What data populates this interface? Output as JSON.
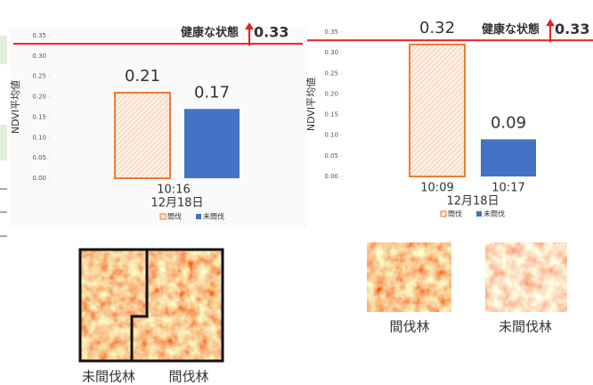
{
  "chart_data": [
    {
      "type": "bar",
      "y_label": "NDVI平均値",
      "x_group_label": "12月18日",
      "categories": [
        "10:16"
      ],
      "series": [
        {
          "name": "間伐",
          "color": "#ed7d31",
          "values": [
            0.21
          ]
        },
        {
          "name": "未間伐",
          "color": "#4472c4",
          "values": [
            0.17
          ]
        }
      ],
      "ylim": [
        0,
        0.35
      ],
      "yticks": [
        {
          "value": 0,
          "label": "0.00"
        },
        0.05,
        {
          "value": 0.1,
          "label": "0.10"
        },
        0.15,
        {
          "value": 0.2,
          "label": "0.20"
        },
        0.25,
        {
          "value": 0.3,
          "label": "0.30"
        },
        0.35
      ],
      "reference": {
        "label": "健康な状態",
        "value": 0.33,
        "color": "#e8201e"
      }
    },
    {
      "type": "bar",
      "y_label": "NDVI平均値",
      "x_group_label": "12月18日",
      "categories": [
        "10:09",
        "10:17"
      ],
      "series": [
        {
          "name": "間伐",
          "color": "#ed7d31",
          "values": [
            0.32,
            null
          ]
        },
        {
          "name": "未間伐",
          "color": "#4472c4",
          "values": [
            null,
            0.09
          ]
        }
      ],
      "ylim": [
        0,
        0.35
      ],
      "yticks": [
        {
          "value": 0,
          "label": "0.00"
        },
        0.05,
        {
          "value": 0.1,
          "label": "0.10"
        },
        0.15,
        {
          "value": 0.2,
          "label": "0.20"
        },
        0.25,
        {
          "value": 0.3,
          "label": "0.30"
        },
        0.35
      ],
      "reference": {
        "label": "健康な状態",
        "value": 0.33,
        "color": "#e8201e"
      }
    }
  ],
  "photos": {
    "left": [
      "未間伐林",
      "間伐林"
    ],
    "right": [
      "間伐林",
      "未間伐林"
    ]
  }
}
